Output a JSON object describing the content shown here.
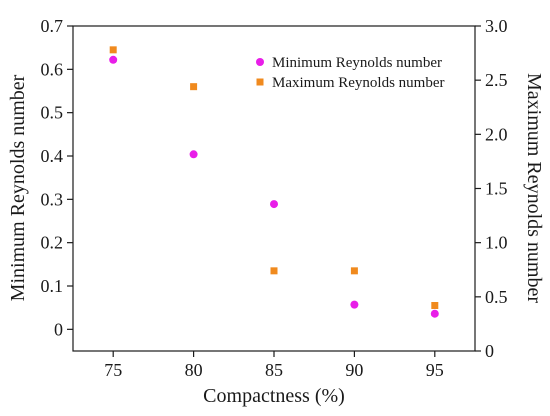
{
  "chart_data": {
    "type": "scatter",
    "x": [
      75,
      80,
      85,
      90,
      95
    ],
    "xlabel": "Compactness (%)",
    "ylabel": "Minimum Reynolds number",
    "y2label": "Maximum Reynolds number",
    "xlim": [
      72.5,
      97.5
    ],
    "ylim": [
      -0.05,
      0.7
    ],
    "y2lim": [
      0,
      3.0
    ],
    "xticks": [
      "75",
      "80",
      "85",
      "90",
      "95"
    ],
    "yticks": [
      "0",
      "0.1",
      "0.2",
      "0.3",
      "0.4",
      "0.5",
      "0.6",
      "0.7"
    ],
    "y2ticks": [
      "0",
      "0.5",
      "1.0",
      "1.5",
      "2.0",
      "2.5",
      "3.0"
    ],
    "grid": false,
    "legend_position": "top-right",
    "series": [
      {
        "name": "Minimum Reynolds number",
        "axis": "left",
        "marker": "circle",
        "color": "#e81ee8",
        "values": [
          0.622,
          0.404,
          0.289,
          0.057,
          0.036
        ]
      },
      {
        "name": "Maximum Reynolds number",
        "axis": "right",
        "marker": "square",
        "color": "#f08a1e",
        "values": [
          2.78,
          2.44,
          0.74,
          0.74,
          0.42
        ]
      }
    ]
  }
}
